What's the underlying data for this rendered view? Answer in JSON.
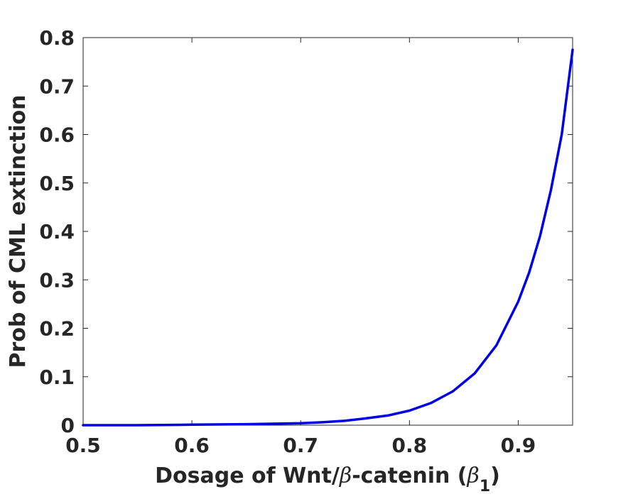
{
  "chart_data": {
    "type": "line",
    "title": "",
    "xlabel_parts": {
      "prefix": "Dosage of Wnt/",
      "greek": "β",
      "middle": "-catenin (",
      "sub_greek": "β",
      "sub": "1",
      "suffix": ")"
    },
    "ylabel": "Prob of CML extinction",
    "xlim": [
      0.5,
      0.95
    ],
    "ylim": [
      0,
      0.8
    ],
    "xticks": [
      "0.5",
      "0.6",
      "0.7",
      "0.8",
      "0.9"
    ],
    "yticks": [
      "0",
      "0.1",
      "0.2",
      "0.3",
      "0.4",
      "0.5",
      "0.6",
      "0.7",
      "0.8"
    ],
    "grid": false,
    "legend": "none",
    "series": [
      {
        "color": "#0000e6",
        "x": [
          0.5,
          0.55,
          0.6,
          0.65,
          0.7,
          0.72,
          0.74,
          0.76,
          0.78,
          0.8,
          0.82,
          0.84,
          0.86,
          0.88,
          0.9,
          0.91,
          0.92,
          0.93,
          0.94,
          0.95
        ],
        "y": [
          0.0,
          0.0,
          0.001,
          0.002,
          0.004,
          0.006,
          0.009,
          0.014,
          0.02,
          0.03,
          0.046,
          0.07,
          0.107,
          0.165,
          0.255,
          0.315,
          0.39,
          0.485,
          0.6,
          0.775
        ]
      }
    ]
  }
}
